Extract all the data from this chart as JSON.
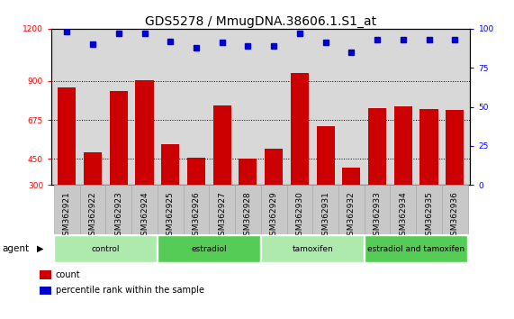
{
  "title": "GDS5278 / MmugDNA.38606.1.S1_at",
  "samples": [
    "GSM362921",
    "GSM362922",
    "GSM362923",
    "GSM362924",
    "GSM362925",
    "GSM362926",
    "GSM362927",
    "GSM362928",
    "GSM362929",
    "GSM362930",
    "GSM362931",
    "GSM362932",
    "GSM362933",
    "GSM362934",
    "GSM362935",
    "GSM362936"
  ],
  "counts": [
    860,
    490,
    840,
    905,
    535,
    455,
    760,
    450,
    510,
    945,
    640,
    400,
    745,
    755,
    740,
    730
  ],
  "percentiles": [
    98,
    90,
    97,
    97,
    92,
    88,
    91,
    89,
    89,
    97,
    91,
    85,
    93,
    93,
    93,
    93
  ],
  "groups": [
    {
      "label": "control",
      "start": 0,
      "end": 4,
      "color": "#aeeaae"
    },
    {
      "label": "estradiol",
      "start": 4,
      "end": 8,
      "color": "#55cc55"
    },
    {
      "label": "tamoxifen",
      "start": 8,
      "end": 12,
      "color": "#aeeaae"
    },
    {
      "label": "estradiol and tamoxifen",
      "start": 12,
      "end": 16,
      "color": "#55cc55"
    }
  ],
  "bar_color": "#cc0000",
  "dot_color": "#0000cc",
  "ylim_left": [
    300,
    1200
  ],
  "ylim_right": [
    0,
    100
  ],
  "yticks_left": [
    300,
    450,
    675,
    900,
    1200
  ],
  "yticks_right": [
    0,
    25,
    50,
    75,
    100
  ],
  "grid_values": [
    450,
    675,
    900
  ],
  "bar_width": 0.7,
  "background_color": "#ffffff",
  "plot_bg_color": "#d8d8d8",
  "xtick_bg_color": "#c8c8c8",
  "title_fontsize": 10,
  "tick_fontsize": 6.5,
  "legend_items": [
    {
      "color": "#cc0000",
      "label": "count"
    },
    {
      "color": "#0000cc",
      "label": "percentile rank within the sample"
    }
  ],
  "agent_label": "agent"
}
